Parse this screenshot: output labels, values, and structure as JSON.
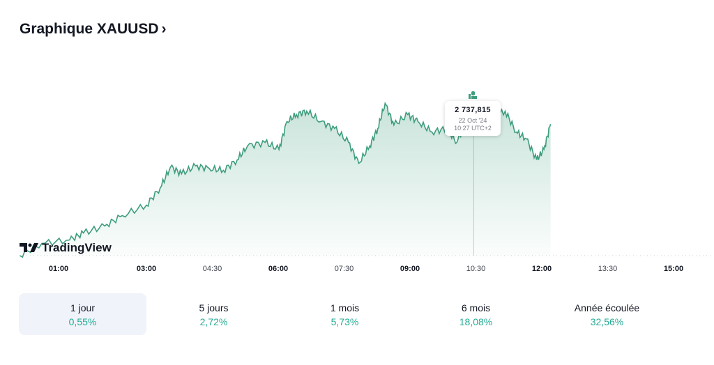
{
  "title": "Graphique XAUUSD",
  "title_chevron": "›",
  "logo_text": "TradingView",
  "tooltip": {
    "price": "2 737,815",
    "date": "22 Oct '24",
    "time": "10:27 UTC+2"
  },
  "colors": {
    "line": "#3e9d7e",
    "positive": "#22ab94"
  },
  "periods": [
    {
      "label": "1 jour",
      "value": "0,55%",
      "selected": true
    },
    {
      "label": "5 jours",
      "value": "2,72%"
    },
    {
      "label": "1 mois",
      "value": "5,73%"
    },
    {
      "label": "6 mois",
      "value": "18,08%"
    },
    {
      "label": "Année écoulée",
      "value": "32,56%"
    }
  ],
  "chart_data": {
    "type": "area",
    "title": "Graphique XAUUSD",
    "xlabel": "",
    "ylabel": "",
    "x_unit": "minutes since 00:00 (UTC+2)",
    "x_ticks": [
      {
        "min": 60,
        "label": "01:00",
        "bold": true
      },
      {
        "min": 180,
        "label": "03:00",
        "bold": true
      },
      {
        "min": 270,
        "label": "04:30"
      },
      {
        "min": 360,
        "label": "06:00",
        "bold": true
      },
      {
        "min": 450,
        "label": "07:30"
      },
      {
        "min": 540,
        "label": "09:00",
        "bold": true
      },
      {
        "min": 630,
        "label": "10:30"
      },
      {
        "min": 720,
        "label": "12:00",
        "bold": true
      },
      {
        "min": 810,
        "label": "13:30"
      },
      {
        "min": 900,
        "label": "15:00",
        "bold": true
      }
    ],
    "x": [
      7,
      37,
      75,
      94,
      123,
      147,
      180,
      199,
      213,
      228,
      247,
      266,
      285,
      304,
      318,
      342,
      361,
      372,
      385,
      399,
      418,
      437,
      456,
      470,
      485,
      496,
      506,
      518,
      537,
      551,
      570,
      590,
      604,
      618,
      627,
      637,
      651,
      670,
      685,
      699,
      713,
      723,
      732
    ],
    "y": [
      2722.0,
      2723.4,
      2723.8,
      2724.6,
      2725.4,
      2726.6,
      2727.8,
      2729.8,
      2732.2,
      2731.4,
      2732.3,
      2732.0,
      2731.8,
      2733.0,
      2734.6,
      2735.0,
      2734.2,
      2737.4,
      2738.2,
      2738.6,
      2737.4,
      2736.6,
      2735.0,
      2732.6,
      2734.6,
      2736.6,
      2739.5,
      2737.0,
      2738.2,
      2737.4,
      2736.2,
      2736.6,
      2735.0,
      2737.8,
      2737.8,
      2737.4,
      2737.9,
      2738.6,
      2736.2,
      2735.4,
      2733.0,
      2734.2,
      2737.1
    ],
    "crosshair": {
      "min": 627,
      "price": 2737.815
    }
  }
}
